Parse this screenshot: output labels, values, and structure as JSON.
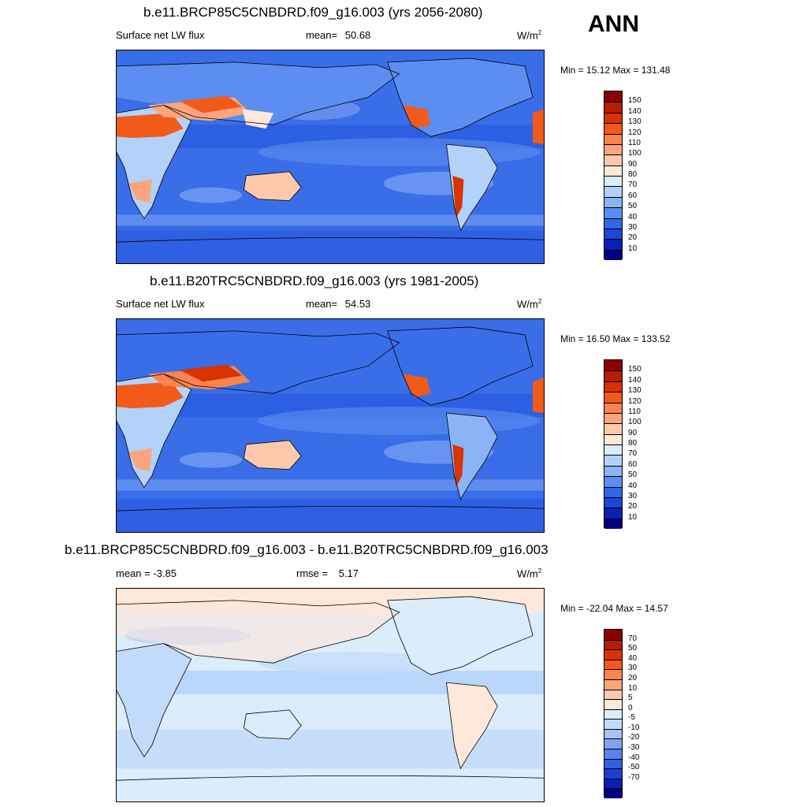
{
  "season": "ANN",
  "panels": [
    {
      "title": "b.e11.BRCP85C5CNBDRD.f09_g16.003 (yrs 2056-2080)",
      "left_label": "Surface net LW flux",
      "mean_label": "mean=",
      "mean_value": "50.68",
      "units": "W/m",
      "units_exp": "2",
      "minmax": "Min =  15.12 Max = 131.48",
      "colorbar": {
        "colors": [
          "#8b0000",
          "#b51e00",
          "#d93300",
          "#f25a1a",
          "#fa8350",
          "#fca57d",
          "#fdc9ad",
          "#fde8da",
          "#dbecfa",
          "#b3d2fa",
          "#8ab4f5",
          "#5b8ef0",
          "#3366e6",
          "#1f44d9",
          "#0a20b3",
          "#000080"
        ],
        "labels": [
          "150",
          "140",
          "130",
          "120",
          "110",
          "100",
          "90",
          "80",
          "70",
          "60",
          "50",
          "40",
          "30",
          "20",
          "10"
        ]
      }
    },
    {
      "title": "b.e11.B20TRC5CNBDRD.f09_g16.003 (yrs 1981-2005)",
      "left_label": "Surface net LW flux",
      "mean_label": "mean=",
      "mean_value": "54.53",
      "units": "W/m",
      "units_exp": "2",
      "minmax": "Min =  16.50 Max = 133.52",
      "colorbar": {
        "colors": [
          "#8b0000",
          "#b51e00",
          "#d93300",
          "#f25a1a",
          "#fa8350",
          "#fca57d",
          "#fdc9ad",
          "#fde8da",
          "#dbecfa",
          "#b3d2fa",
          "#8ab4f5",
          "#5b8ef0",
          "#3366e6",
          "#1f44d9",
          "#0a20b3",
          "#000080"
        ],
        "labels": [
          "150",
          "140",
          "130",
          "120",
          "110",
          "100",
          "90",
          "80",
          "70",
          "60",
          "50",
          "40",
          "30",
          "20",
          "10"
        ]
      }
    },
    {
      "title": "b.e11.BRCP85C5CNBDRD.f09_g16.003 - b.e11.B20TRC5CNBDRD.f09_g16.003",
      "left_label": "mean =  -3.85",
      "mid_label": "rmse =",
      "mid_value": "5.17",
      "units": "W/m",
      "units_exp": "2",
      "minmax": "Min = -22.04 Max =  14.57",
      "colorbar": {
        "colors": [
          "#8b0000",
          "#b51e00",
          "#d93300",
          "#f25a1a",
          "#fa8350",
          "#fca57d",
          "#fdc9ad",
          "#fde8da",
          "#dbecfa",
          "#c2dbfa",
          "#a5c3f5",
          "#7fa4f0",
          "#5b82eb",
          "#3360e0",
          "#1f3fd1",
          "#0a20b3",
          "#000080"
        ],
        "labels": [
          "70",
          "50",
          "40",
          "30",
          "20",
          "10",
          "5",
          "0",
          "-5",
          "-10",
          "-20",
          "-30",
          "-40",
          "-50",
          "-70"
        ]
      }
    }
  ],
  "colors": {
    "map_background_abs": "#3a6ee8",
    "map_background_diff": "#dbecfa",
    "coastline": "#000000"
  }
}
